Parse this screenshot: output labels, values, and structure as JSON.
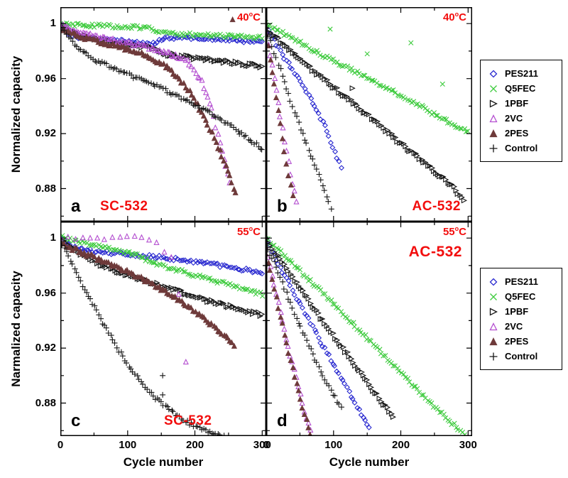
{
  "figure": {
    "ylabel_top": "Normalized capacity",
    "ylabel_bottom": "Narmalized capacity",
    "xlabel": "Cycle number",
    "deg": "o",
    "temp_unit": "C",
    "x_ticks": [
      0,
      100,
      200,
      300
    ],
    "x_minor_ticks": [
      50,
      150,
      250
    ],
    "y_ticks": [
      {
        "label": "1",
        "value": 1.0
      },
      {
        "label": "0.96",
        "value": 0.96
      },
      {
        "label": "0.92",
        "value": 0.92
      },
      {
        "label": "0.88",
        "value": 0.88
      }
    ],
    "y_minor_ticks": [
      0.98,
      0.94,
      0.9,
      0.86
    ],
    "accent_red": "#f20d0d"
  },
  "legend": {
    "entries": [
      {
        "label": "PES211",
        "marker": "diamond",
        "color": "#2b2bd0",
        "filled": false
      },
      {
        "label": "Q5FEC",
        "marker": "x",
        "color": "#3ecb3e",
        "filled": false
      },
      {
        "label": "1PBF",
        "marker": "triangle-right",
        "color": "#161616",
        "filled": false
      },
      {
        "label": "2VC",
        "marker": "triangle-up",
        "color": "#b44fd0",
        "filled": false
      },
      {
        "label": "2PES",
        "marker": "triangle-up",
        "color": "#6e3a3a",
        "filled": true
      },
      {
        "label": "Control",
        "marker": "plus",
        "color": "#161616",
        "filled": false
      }
    ]
  },
  "chart_data": [
    {
      "panel": "a",
      "cell": "SC-532",
      "temp": "40",
      "type": "scatter",
      "x_range": [
        0,
        300
      ],
      "y_range": [
        0.86,
        1.01
      ],
      "series": [
        {
          "name": "PES211",
          "points": [
            [
              0,
              1.0
            ],
            [
              10,
              0.993
            ],
            [
              30,
              0.99
            ],
            [
              60,
              0.988
            ],
            [
              100,
              0.987
            ],
            [
              140,
              0.985
            ],
            [
              155,
              0.99
            ],
            [
              200,
              0.989
            ],
            [
              250,
              0.988
            ],
            [
              300,
              0.986
            ]
          ]
        },
        {
          "name": "Q5FEC",
          "points": [
            [
              0,
              1.0
            ],
            [
              30,
              0.999
            ],
            [
              80,
              0.998
            ],
            [
              130,
              0.997
            ],
            [
              150,
              0.993
            ],
            [
              200,
              0.992
            ],
            [
              250,
              0.991
            ],
            [
              300,
              0.99
            ]
          ]
        },
        {
          "name": "1PBF",
          "points": [
            [
              0,
              0.998
            ],
            [
              30,
              0.991
            ],
            [
              60,
              0.988
            ],
            [
              100,
              0.985
            ],
            [
              140,
              0.982
            ],
            [
              155,
              0.978
            ],
            [
              200,
              0.975
            ],
            [
              250,
              0.972
            ],
            [
              300,
              0.969
            ]
          ]
        },
        {
          "name": "2VC",
          "points": [
            [
              0,
              0.999
            ],
            [
              40,
              0.992
            ],
            [
              80,
              0.988
            ],
            [
              120,
              0.984
            ],
            [
              160,
              0.979
            ],
            [
              190,
              0.972
            ],
            [
              210,
              0.958
            ],
            [
              225,
              0.938
            ],
            [
              235,
              0.917
            ],
            [
              245,
              0.897
            ],
            [
              252,
              0.885
            ]
          ]
        },
        {
          "name": "2PES",
          "points": [
            [
              0,
              0.996
            ],
            [
              40,
              0.989
            ],
            [
              80,
              0.984
            ],
            [
              120,
              0.979
            ],
            [
              160,
              0.968
            ],
            [
              190,
              0.952
            ],
            [
              210,
              0.936
            ],
            [
              230,
              0.915
            ],
            [
              250,
              0.892
            ],
            [
              263,
              0.873
            ]
          ],
          "outliers": [
            [
              256,
              1.003
            ]
          ]
        },
        {
          "name": "Control",
          "points": [
            [
              0,
              0.999
            ],
            [
              20,
              0.985
            ],
            [
              50,
              0.974
            ],
            [
              100,
              0.963
            ],
            [
              150,
              0.953
            ],
            [
              200,
              0.941
            ],
            [
              250,
              0.927
            ],
            [
              300,
              0.909
            ]
          ]
        }
      ]
    },
    {
      "panel": "b",
      "cell": "AC-532",
      "temp": "40",
      "type": "scatter",
      "x_range": [
        0,
        300
      ],
      "y_range": [
        0.86,
        1.01
      ],
      "series": [
        {
          "name": "PES211",
          "points": [
            [
              0,
              0.998
            ],
            [
              15,
              0.985
            ],
            [
              30,
              0.973
            ],
            [
              50,
              0.958
            ],
            [
              70,
              0.942
            ],
            [
              90,
              0.922
            ],
            [
              105,
              0.903
            ],
            [
              112,
              0.893
            ]
          ]
        },
        {
          "name": "Q5FEC",
          "points": [
            [
              0,
              1.0
            ],
            [
              40,
              0.989
            ],
            [
              80,
              0.978
            ],
            [
              120,
              0.968
            ],
            [
              160,
              0.958
            ],
            [
              200,
              0.948
            ],
            [
              250,
              0.934
            ],
            [
              300,
              0.921
            ]
          ],
          "outliers": [
            [
              95,
              0.996
            ],
            [
              150,
              0.978
            ],
            [
              215,
              0.986
            ],
            [
              262,
              0.956
            ]
          ]
        },
        {
          "name": "1PBF",
          "points": [
            [
              0,
              0.996
            ],
            [
              40,
              0.979
            ],
            [
              80,
              0.962
            ],
            [
              120,
              0.946
            ],
            [
              160,
              0.93
            ],
            [
              200,
              0.913
            ],
            [
              240,
              0.897
            ],
            [
              270,
              0.885
            ],
            [
              295,
              0.872
            ]
          ],
          "outliers": [
            [
              128,
              0.953
            ]
          ]
        },
        {
          "name": "2VC",
          "points": [
            [
              0,
              0.993
            ],
            [
              8,
              0.972
            ],
            [
              16,
              0.948
            ],
            [
              24,
              0.924
            ],
            [
              32,
              0.901
            ],
            [
              40,
              0.882
            ],
            [
              46,
              0.868
            ]
          ]
        },
        {
          "name": "2PES",
          "points": [
            [
              0,
              0.992
            ],
            [
              8,
              0.968
            ],
            [
              16,
              0.942
            ],
            [
              25,
              0.914
            ],
            [
              33,
              0.89
            ],
            [
              40,
              0.872
            ]
          ]
        },
        {
          "name": "Control",
          "points": [
            [
              0,
              0.996
            ],
            [
              15,
              0.975
            ],
            [
              30,
              0.953
            ],
            [
              45,
              0.932
            ],
            [
              60,
              0.912
            ],
            [
              75,
              0.894
            ],
            [
              88,
              0.878
            ],
            [
              96,
              0.866
            ]
          ]
        }
      ]
    },
    {
      "panel": "c",
      "cell": "SC-532",
      "temp": "55",
      "type": "scatter",
      "x_range": [
        0,
        300
      ],
      "y_range": [
        0.86,
        1.01
      ],
      "series": [
        {
          "name": "PES211",
          "points": [
            [
              0,
              1.0
            ],
            [
              20,
              0.993
            ],
            [
              60,
              0.99
            ],
            [
              100,
              0.988
            ],
            [
              150,
              0.986
            ],
            [
              200,
              0.983
            ],
            [
              250,
              0.979
            ],
            [
              300,
              0.975
            ]
          ]
        },
        {
          "name": "Q5FEC",
          "points": [
            [
              0,
              1.001
            ],
            [
              30,
              0.997
            ],
            [
              70,
              0.993
            ],
            [
              110,
              0.988
            ],
            [
              150,
              0.98
            ],
            [
              200,
              0.973
            ],
            [
              250,
              0.966
            ],
            [
              300,
              0.959
            ]
          ]
        },
        {
          "name": "1PBF",
          "points": [
            [
              0,
              0.999
            ],
            [
              25,
              0.99
            ],
            [
              55,
              0.982
            ],
            [
              95,
              0.974
            ],
            [
              140,
              0.967
            ],
            [
              185,
              0.96
            ],
            [
              230,
              0.953
            ],
            [
              270,
              0.948
            ],
            [
              300,
              0.944
            ]
          ]
        },
        {
          "name": "2VC",
          "step": 11,
          "points": [
            [
              0,
              1.001
            ],
            [
              40,
              1.0
            ],
            [
              80,
              1.0
            ],
            [
              115,
              1.001
            ],
            [
              145,
              0.996
            ],
            [
              165,
              0.985
            ],
            [
              175,
              0.962
            ],
            [
              182,
              0.935
            ],
            [
              188,
              0.905
            ],
            [
              193,
              0.875
            ]
          ]
        },
        {
          "name": "2PES",
          "points": [
            [
              0,
              0.996
            ],
            [
              40,
              0.988
            ],
            [
              80,
              0.98
            ],
            [
              120,
              0.971
            ],
            [
              160,
              0.96
            ],
            [
              200,
              0.947
            ],
            [
              235,
              0.933
            ],
            [
              260,
              0.921
            ]
          ]
        },
        {
          "name": "Control",
          "points": [
            [
              0,
              0.999
            ],
            [
              15,
              0.983
            ],
            [
              35,
              0.964
            ],
            [
              55,
              0.946
            ],
            [
              75,
              0.928
            ],
            [
              95,
              0.912
            ],
            [
              115,
              0.898
            ],
            [
              140,
              0.884
            ],
            [
              170,
              0.872
            ],
            [
              200,
              0.863
            ],
            [
              230,
              0.857
            ],
            [
              252,
              0.854
            ]
          ],
          "outliers": [
            [
              152,
              0.9
            ],
            [
              152,
              0.886
            ]
          ]
        }
      ]
    },
    {
      "panel": "d",
      "cell": "AC-532",
      "temp": "55",
      "type": "scatter",
      "x_range": [
        0,
        300
      ],
      "y_range": [
        0.86,
        1.01
      ],
      "series": [
        {
          "name": "PES211",
          "points": [
            [
              0,
              1.0
            ],
            [
              25,
              0.975
            ],
            [
              50,
              0.952
            ],
            [
              75,
              0.93
            ],
            [
              100,
              0.908
            ],
            [
              125,
              0.886
            ],
            [
              145,
              0.868
            ],
            [
              155,
              0.86
            ]
          ]
        },
        {
          "name": "Q5FEC",
          "points": [
            [
              0,
              1.0
            ],
            [
              40,
              0.981
            ],
            [
              80,
              0.962
            ],
            [
              120,
              0.942
            ],
            [
              160,
              0.922
            ],
            [
              200,
              0.902
            ],
            [
              240,
              0.882
            ],
            [
              270,
              0.868
            ],
            [
              295,
              0.857
            ]
          ]
        },
        {
          "name": "1PBF",
          "points": [
            [
              0,
              0.999
            ],
            [
              30,
              0.978
            ],
            [
              60,
              0.957
            ],
            [
              90,
              0.936
            ],
            [
              120,
              0.916
            ],
            [
              150,
              0.896
            ],
            [
              175,
              0.879
            ],
            [
              190,
              0.869
            ]
          ]
        },
        {
          "name": "2VC",
          "points": [
            [
              0,
              0.993
            ],
            [
              12,
              0.966
            ],
            [
              24,
              0.94
            ],
            [
              36,
              0.915
            ],
            [
              48,
              0.892
            ],
            [
              58,
              0.873
            ],
            [
              66,
              0.86
            ]
          ]
        },
        {
          "name": "2PES",
          "points": [
            [
              0,
              0.988
            ],
            [
              12,
              0.963
            ],
            [
              24,
              0.937
            ],
            [
              36,
              0.911
            ],
            [
              48,
              0.888
            ],
            [
              58,
              0.87
            ],
            [
              66,
              0.858
            ]
          ]
        },
        {
          "name": "Control",
          "points": [
            [
              0,
              0.996
            ],
            [
              20,
              0.972
            ],
            [
              40,
              0.948
            ],
            [
              60,
              0.925
            ],
            [
              80,
              0.904
            ],
            [
              100,
              0.886
            ],
            [
              112,
              0.875
            ]
          ]
        }
      ]
    }
  ]
}
